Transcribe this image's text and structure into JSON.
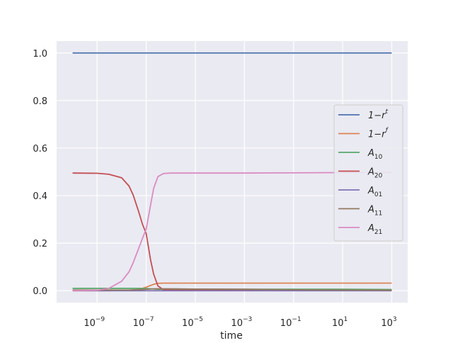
{
  "chart_data": {
    "type": "line",
    "title": "",
    "xlabel": "time",
    "ylabel": "",
    "xscale": "log",
    "xlim": [
      1e-10,
      1000.0
    ],
    "ylim": [
      -0.05,
      1.05
    ],
    "x_ticks": [
      {
        "value": 1e-09,
        "base": "10",
        "exp": "−9"
      },
      {
        "value": 1e-07,
        "base": "10",
        "exp": "−7"
      },
      {
        "value": 1e-05,
        "base": "10",
        "exp": "−5"
      },
      {
        "value": 0.001,
        "base": "10",
        "exp": "−3"
      },
      {
        "value": 0.1,
        "base": "10",
        "exp": "−1"
      },
      {
        "value": 10.0,
        "base": "10",
        "exp": "1"
      },
      {
        "value": 1000.0,
        "base": "10",
        "exp": "3"
      }
    ],
    "y_ticks": [
      {
        "value": 0.0,
        "label": "0.0"
      },
      {
        "value": 0.2,
        "label": "0.2"
      },
      {
        "value": 0.4,
        "label": "0.4"
      },
      {
        "value": 0.6,
        "label": "0.6"
      },
      {
        "value": 0.8,
        "label": "0.8"
      },
      {
        "value": 1.0,
        "label": "1.0"
      }
    ],
    "grid": true,
    "legend_position": "right",
    "x": [
      1e-10,
      1e-09,
      3e-09,
      1e-08,
      2e-08,
      3e-08,
      5e-08,
      7e-08,
      1e-07,
      1.5e-07,
      2e-07,
      3e-07,
      5e-07,
      1e-06,
      1e-05,
      0.001,
      0.1,
      10.0,
      1000.0
    ],
    "series": [
      {
        "name_base": "1−r",
        "name_sup": "t",
        "name_sub": "",
        "color": "#4c72b0",
        "values": [
          1.0,
          1.0,
          1.0,
          1.0,
          1.0,
          1.0,
          1.0,
          1.0,
          1.0,
          1.0,
          1.0,
          1.0,
          1.0,
          1.0,
          1.0,
          1.0,
          1.0,
          1.0,
          1.0
        ]
      },
      {
        "name_base": "1−r",
        "name_sup": "f",
        "name_sub": "",
        "color": "#dd8452",
        "values": [
          0.0,
          0.0,
          0.0,
          0.001,
          0.002,
          0.003,
          0.006,
          0.01,
          0.015,
          0.022,
          0.027,
          0.031,
          0.032,
          0.032,
          0.032,
          0.032,
          0.032,
          0.032,
          0.032
        ]
      },
      {
        "name_base": "A",
        "name_sup": "",
        "name_sub": "10",
        "color": "#55a868",
        "values": [
          0.01,
          0.01,
          0.01,
          0.01,
          0.01,
          0.01,
          0.01,
          0.009,
          0.009,
          0.008,
          0.007,
          0.006,
          0.006,
          0.006,
          0.006,
          0.006,
          0.006,
          0.006,
          0.005
        ]
      },
      {
        "name_base": "A",
        "name_sup": "",
        "name_sub": "20",
        "color": "#c44e52",
        "values": [
          0.495,
          0.494,
          0.49,
          0.475,
          0.44,
          0.4,
          0.33,
          0.28,
          0.24,
          0.13,
          0.07,
          0.02,
          0.004,
          0.002,
          0.002,
          0.002,
          0.002,
          0.002,
          0.002
        ]
      },
      {
        "name_base": "A",
        "name_sup": "",
        "name_sub": "01",
        "color": "#8172b3",
        "values": [
          0.0,
          0.0,
          0.0,
          0.0,
          0.0,
          0.0,
          0.0,
          0.0,
          0.0,
          0.0,
          0.0,
          0.0,
          0.0,
          0.0,
          0.0,
          0.0,
          0.0,
          0.0,
          0.0
        ]
      },
      {
        "name_base": "A",
        "name_sup": "",
        "name_sub": "11",
        "color": "#937860",
        "values": [
          0.003,
          0.003,
          0.003,
          0.003,
          0.003,
          0.004,
          0.004,
          0.005,
          0.006,
          0.007,
          0.008,
          0.008,
          0.008,
          0.008,
          0.007,
          0.006,
          0.004,
          0.003,
          0.002
        ]
      },
      {
        "name_base": "A",
        "name_sup": "",
        "name_sub": "21",
        "color": "#da8bc3",
        "values": [
          0.0,
          0.002,
          0.01,
          0.04,
          0.08,
          0.12,
          0.18,
          0.22,
          0.26,
          0.36,
          0.43,
          0.48,
          0.493,
          0.495,
          0.495,
          0.495,
          0.496,
          0.497,
          0.498
        ]
      }
    ]
  }
}
